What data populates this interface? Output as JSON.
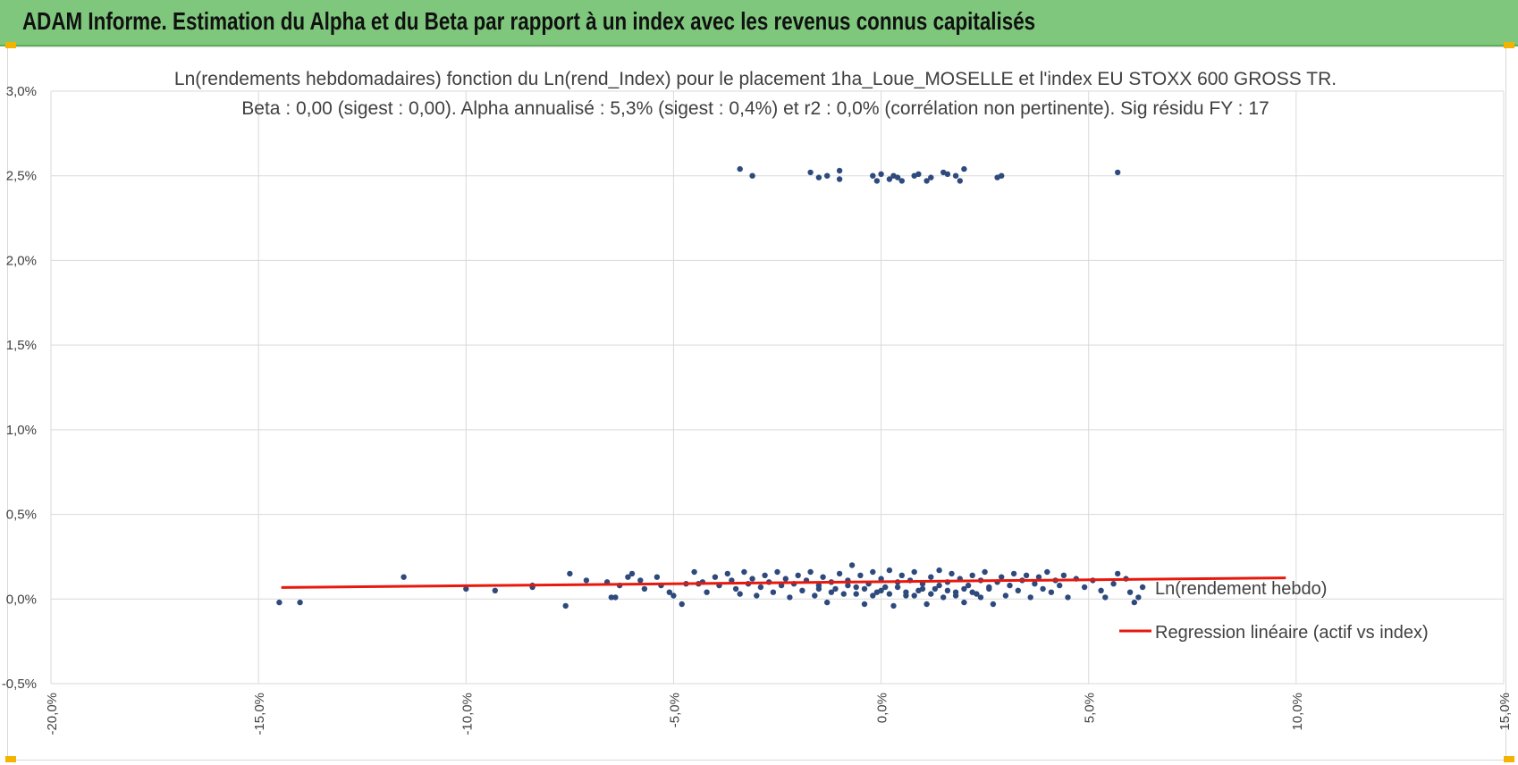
{
  "header": {
    "title": "ADAM Informe. Estimation du Alpha et du Beta par rapport à un index avec les revenus connus capitalisés"
  },
  "colors": {
    "header_bg": "#7ec77c",
    "points": "#2e4a7d",
    "regression": "#e8180c",
    "grid": "#d9d9d9",
    "handles": "#f2b400"
  },
  "chart_data": {
    "type": "scatter",
    "title": "Ln(rendements hebdomadaires) fonction du Ln(rend_Index) pour le placement 1ha_Loue_MOSELLE et l'index EU STOXX 600 GROSS TR.",
    "subtitle": "Beta : 0,00 (sigest : 0,00).  Alpha annualisé : 5,3% (sigest : 0,4%) et r2 : 0,0% (corrélation non pertinente). Sig résidu FY : 17",
    "xlim": [
      -0.2,
      0.15
    ],
    "ylim": [
      -0.005,
      0.03
    ],
    "x_ticks": [
      "-20,0%",
      "-15,0%",
      "-10,0%",
      "-5,0%",
      "0,0%",
      "5,0%",
      "10,0%",
      "15,0%"
    ],
    "y_ticks": [
      "3,0%",
      "2,5%",
      "2,0%",
      "1,5%",
      "1,0%",
      "0,5%",
      "0,0%",
      "-0,5%"
    ],
    "grid": true,
    "legend_position": "right",
    "series": [
      {
        "name": "Ln(rendement hebdo)",
        "kind": "scatter",
        "points": [
          [
            -0.145,
            -0.0002
          ],
          [
            -0.14,
            -0.0002
          ],
          [
            -0.115,
            0.0013
          ],
          [
            -0.1,
            0.0006
          ],
          [
            -0.093,
            0.0005
          ],
          [
            -0.084,
            0.0008
          ],
          [
            -0.084,
            0.0007
          ],
          [
            -0.075,
            0.0015
          ],
          [
            -0.076,
            -0.0004
          ],
          [
            -0.071,
            0.0011
          ],
          [
            -0.066,
            0.001
          ],
          [
            -0.065,
            0.0001
          ],
          [
            -0.064,
            0.0001
          ],
          [
            -0.063,
            0.0008
          ],
          [
            -0.061,
            0.0013
          ],
          [
            -0.06,
            0.0015
          ],
          [
            -0.058,
            0.0011
          ],
          [
            -0.057,
            0.0006
          ],
          [
            -0.054,
            0.0013
          ],
          [
            -0.053,
            0.0008
          ],
          [
            -0.051,
            0.0004
          ],
          [
            -0.05,
            0.0002
          ],
          [
            -0.048,
            -0.0003
          ],
          [
            -0.047,
            0.0009
          ],
          [
            -0.045,
            0.0016
          ],
          [
            -0.044,
            0.0009
          ],
          [
            -0.043,
            0.001
          ],
          [
            -0.042,
            0.0004
          ],
          [
            -0.04,
            0.0013
          ],
          [
            -0.039,
            0.0008
          ],
          [
            -0.037,
            0.0015
          ],
          [
            -0.036,
            0.0011
          ],
          [
            -0.035,
            0.0006
          ],
          [
            -0.034,
            0.0003
          ],
          [
            -0.033,
            0.0016
          ],
          [
            -0.032,
            0.0009
          ],
          [
            -0.031,
            0.0012
          ],
          [
            -0.03,
            0.0002
          ],
          [
            -0.029,
            0.0007
          ],
          [
            -0.028,
            0.0014
          ],
          [
            -0.027,
            0.001
          ],
          [
            -0.026,
            0.0004
          ],
          [
            -0.025,
            0.0016
          ],
          [
            -0.024,
            0.0008
          ],
          [
            -0.023,
            0.0012
          ],
          [
            -0.022,
            0.0001
          ],
          [
            -0.021,
            0.0009
          ],
          [
            -0.02,
            0.0014
          ],
          [
            -0.019,
            0.0005
          ],
          [
            -0.018,
            0.0011
          ],
          [
            -0.017,
            0.0016
          ],
          [
            -0.016,
            0.0002
          ],
          [
            -0.015,
            0.0008
          ],
          [
            -0.014,
            0.0013
          ],
          [
            -0.013,
            -0.0002
          ],
          [
            -0.012,
            0.001
          ],
          [
            -0.011,
            0.0006
          ],
          [
            -0.01,
            0.0015
          ],
          [
            -0.009,
            0.0003
          ],
          [
            -0.008,
            0.0011
          ],
          [
            -0.007,
            0.002
          ],
          [
            -0.006,
            0.0007
          ],
          [
            -0.005,
            0.0014
          ],
          [
            -0.004,
            -0.0003
          ],
          [
            -0.003,
            0.0009
          ],
          [
            -0.002,
            0.0016
          ],
          [
            -0.001,
            0.0004
          ],
          [
            0.0,
            0.0012
          ],
          [
            0.001,
            0.0007
          ],
          [
            0.002,
            0.0017
          ],
          [
            0.003,
            -0.0004
          ],
          [
            0.004,
            0.001
          ],
          [
            0.005,
            0.0014
          ],
          [
            0.006,
            0.0002
          ],
          [
            0.007,
            0.0011
          ],
          [
            0.008,
            0.0016
          ],
          [
            0.009,
            0.0005
          ],
          [
            0.01,
            0.0009
          ],
          [
            0.011,
            -0.0003
          ],
          [
            0.012,
            0.0013
          ],
          [
            0.013,
            0.0006
          ],
          [
            0.014,
            0.0017
          ],
          [
            0.015,
            0.0001
          ],
          [
            0.016,
            0.001
          ],
          [
            0.017,
            0.0015
          ],
          [
            0.018,
            0.0004
          ],
          [
            0.019,
            0.0012
          ],
          [
            0.02,
            -0.0002
          ],
          [
            0.021,
            0.0008
          ],
          [
            0.022,
            0.0014
          ],
          [
            0.023,
            0.0003
          ],
          [
            0.024,
            0.0011
          ],
          [
            0.025,
            0.0016
          ],
          [
            0.026,
            0.0006
          ],
          [
            0.027,
            -0.0003
          ],
          [
            0.028,
            0.001
          ],
          [
            0.029,
            0.0013
          ],
          [
            0.03,
            0.0002
          ],
          [
            0.031,
            0.0008
          ],
          [
            0.032,
            0.0015
          ],
          [
            0.033,
            0.0005
          ],
          [
            0.034,
            0.0011
          ],
          [
            0.035,
            0.0014
          ],
          [
            0.036,
            0.0001
          ],
          [
            0.037,
            0.0009
          ],
          [
            0.038,
            0.0013
          ],
          [
            0.039,
            0.0006
          ],
          [
            0.04,
            0.0016
          ],
          [
            0.041,
            0.0004
          ],
          [
            0.042,
            0.0011
          ],
          [
            0.043,
            0.0008
          ],
          [
            0.044,
            0.0014
          ],
          [
            0.045,
            0.0001
          ],
          [
            0.047,
            0.0012
          ],
          [
            0.049,
            0.0007
          ],
          [
            0.051,
            0.0011
          ],
          [
            0.053,
            0.0005
          ],
          [
            0.054,
            0.0001
          ],
          [
            0.056,
            0.0009
          ],
          [
            0.057,
            0.0015
          ],
          [
            0.059,
            0.0012
          ],
          [
            0.06,
            0.0004
          ],
          [
            0.062,
            0.0001
          ],
          [
            0.061,
            -0.0002
          ],
          [
            0.063,
            0.0007
          ],
          [
            -0.015,
            0.0006
          ],
          [
            -0.012,
            0.0004
          ],
          [
            -0.008,
            0.0008
          ],
          [
            -0.006,
            0.0003
          ],
          [
            -0.004,
            0.0006
          ],
          [
            -0.002,
            0.0002
          ],
          [
            0.0,
            0.0005
          ],
          [
            0.002,
            0.0003
          ],
          [
            0.004,
            0.0007
          ],
          [
            0.006,
            0.0004
          ],
          [
            0.008,
            0.0002
          ],
          [
            0.01,
            0.0006
          ],
          [
            0.012,
            0.0003
          ],
          [
            0.014,
            0.0008
          ],
          [
            0.016,
            0.0005
          ],
          [
            0.018,
            0.0002
          ],
          [
            0.02,
            0.0006
          ],
          [
            0.022,
            0.0004
          ],
          [
            0.024,
            0.0001
          ],
          [
            0.026,
            0.0007
          ],
          [
            -0.034,
            0.0254
          ],
          [
            -0.031,
            0.025
          ],
          [
            -0.017,
            0.0252
          ],
          [
            -0.015,
            0.0249
          ],
          [
            -0.013,
            0.025
          ],
          [
            -0.01,
            0.0253
          ],
          [
            -0.01,
            0.0248
          ],
          [
            -0.002,
            0.025
          ],
          [
            -0.001,
            0.0247
          ],
          [
            0.0,
            0.0251
          ],
          [
            0.002,
            0.0248
          ],
          [
            0.003,
            0.025
          ],
          [
            0.004,
            0.0249
          ],
          [
            0.005,
            0.0247
          ],
          [
            0.008,
            0.025
          ],
          [
            0.009,
            0.0251
          ],
          [
            0.011,
            0.0247
          ],
          [
            0.012,
            0.0249
          ],
          [
            0.015,
            0.0252
          ],
          [
            0.016,
            0.0251
          ],
          [
            0.018,
            0.025
          ],
          [
            0.019,
            0.0247
          ],
          [
            0.02,
            0.0254
          ],
          [
            0.028,
            0.0249
          ],
          [
            0.029,
            0.025
          ],
          [
            0.057,
            0.0252
          ]
        ]
      },
      {
        "name": "Regression linéaire (actif vs index)",
        "kind": "line",
        "points": [
          [
            -0.1445,
            0.00068
          ],
          [
            0.0975,
            0.00125
          ]
        ]
      }
    ]
  }
}
